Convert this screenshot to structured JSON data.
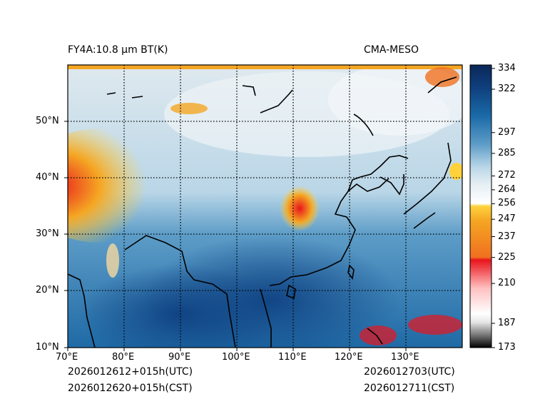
{
  "title_left": "FY4A:10.8 µm BT(K)",
  "title_right": "CMA-MESO",
  "footer": {
    "init_utc": "2026012612+015h(UTC)",
    "init_cst": "2026012620+015h(CST)",
    "valid_utc": "2026012703(UTC)",
    "valid_cst": "2026012711(CST)"
  },
  "map": {
    "lon_range": [
      70,
      140
    ],
    "lat_range": [
      10,
      60
    ],
    "lon_ticks": [
      "70°E",
      "80°E",
      "90°E",
      "100°E",
      "110°E",
      "120°E",
      "130°E"
    ],
    "lat_ticks": [
      "10°N",
      "20°N",
      "30°N",
      "40°N",
      "50°N"
    ]
  },
  "colorbar": {
    "min": 173,
    "max": 336,
    "ticks": [
      "173",
      "187",
      "210",
      "225",
      "237",
      "247",
      "256",
      "264",
      "272",
      "285",
      "297",
      "322",
      "334"
    ],
    "colors": {
      "black": "#000000",
      "red": "#e8141c",
      "orange": "#f5a623",
      "yellow": "#ffd23c",
      "white": "#ffffff",
      "light_blue": "#d6e8f2",
      "blue": "#1a6aa8",
      "navy": "#0a2758"
    }
  }
}
